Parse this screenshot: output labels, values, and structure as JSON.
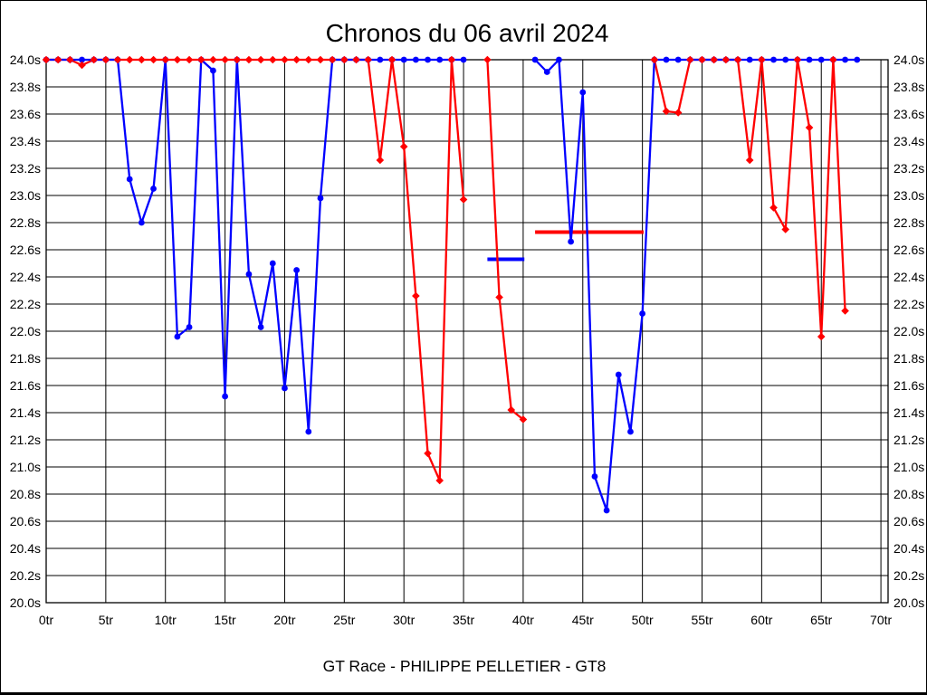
{
  "window": {
    "background": "#ffffff",
    "frame_color": "#000000",
    "grid_color": "#000000"
  },
  "chart_data": {
    "type": "line",
    "title": "Chronos du 06 avril 2024",
    "caption": "GT Race - PHILIPPE PELLETIER - GT8",
    "x_unit": "tr",
    "y_unit": "s",
    "xlim": [
      0,
      70.6
    ],
    "ylim": [
      20.0,
      24.0
    ],
    "x_tick_step": 5,
    "y_tick_step": 0.2,
    "grid": true,
    "clip_max": 24.0,
    "x_ticks": [
      "0tr",
      "5tr",
      "10tr",
      "15tr",
      "20tr",
      "25tr",
      "30tr",
      "35tr",
      "40tr",
      "45tr",
      "50tr",
      "55tr",
      "60tr",
      "65tr",
      "70tr"
    ],
    "y_ticks": [
      "24.0s",
      "23.8s",
      "23.6s",
      "23.4s",
      "23.2s",
      "23.0s",
      "22.8s",
      "22.6s",
      "22.4s",
      "22.2s",
      "22.0s",
      "21.8s",
      "21.6s",
      "21.4s",
      "21.2s",
      "21.0s",
      "20.8s",
      "20.6s",
      "20.4s",
      "20.2s",
      "20.0s"
    ],
    "y_ticks_right": [
      "24.0s",
      "23.8s",
      "23.6s",
      "23.4s",
      "23.2s",
      "23.0s",
      "22.8s",
      "22.6s",
      "22.4s",
      "22.2s",
      "22.0s",
      "21.8s",
      "21.6s",
      "21.4s",
      "21.2s",
      "21.0s",
      "20.8s",
      "20.6s",
      "20.4s",
      "20.2s",
      "20.0s"
    ],
    "series": [
      {
        "name": "red-lane",
        "color": "#ff0000",
        "marker": "diamond",
        "values": [
          24,
          24,
          24,
          23.96,
          24,
          24,
          24,
          24,
          24,
          24,
          24,
          24,
          24,
          24,
          24,
          24,
          24,
          24,
          24,
          24,
          24,
          24,
          24,
          24,
          24,
          24,
          24,
          24,
          23.26,
          24,
          23.36,
          22.26,
          21.1,
          20.9,
          24,
          22.97,
          null,
          24,
          22.25,
          21.42,
          21.35,
          null,
          null,
          null,
          null,
          null,
          null,
          null,
          null,
          null,
          null,
          24,
          23.62,
          23.61,
          24,
          24,
          24,
          24,
          24,
          23.26,
          24,
          22.91,
          22.75,
          24,
          23.5,
          21.96,
          24,
          22.15
        ]
      },
      {
        "name": "blue-lane",
        "color": "#0000ff",
        "marker": "circle",
        "values": [
          24,
          24,
          24,
          24,
          24,
          24,
          24,
          23.12,
          22.8,
          23.05,
          24,
          21.96,
          22.03,
          24,
          23.92,
          21.52,
          24,
          22.42,
          22.03,
          22.5,
          21.58,
          22.45,
          21.26,
          22.98,
          24,
          24,
          24,
          24,
          24,
          24,
          24,
          24,
          24,
          24,
          24,
          24,
          null,
          null,
          null,
          null,
          null,
          24,
          23.91,
          24,
          22.66,
          23.76,
          20.93,
          20.68,
          21.68,
          21.26,
          22.13,
          24,
          24,
          24,
          24,
          24,
          24,
          24,
          24,
          24,
          24,
          24,
          24,
          24,
          24,
          24,
          24,
          24,
          24
        ]
      }
    ],
    "average_lines": [
      {
        "name": "blue-average",
        "color": "#0000ff",
        "value": 22.53,
        "from": 37,
        "to": 40.1
      },
      {
        "name": "red-average",
        "color": "#ff0000",
        "value": 22.73,
        "from": 41,
        "to": 50.1
      }
    ]
  }
}
